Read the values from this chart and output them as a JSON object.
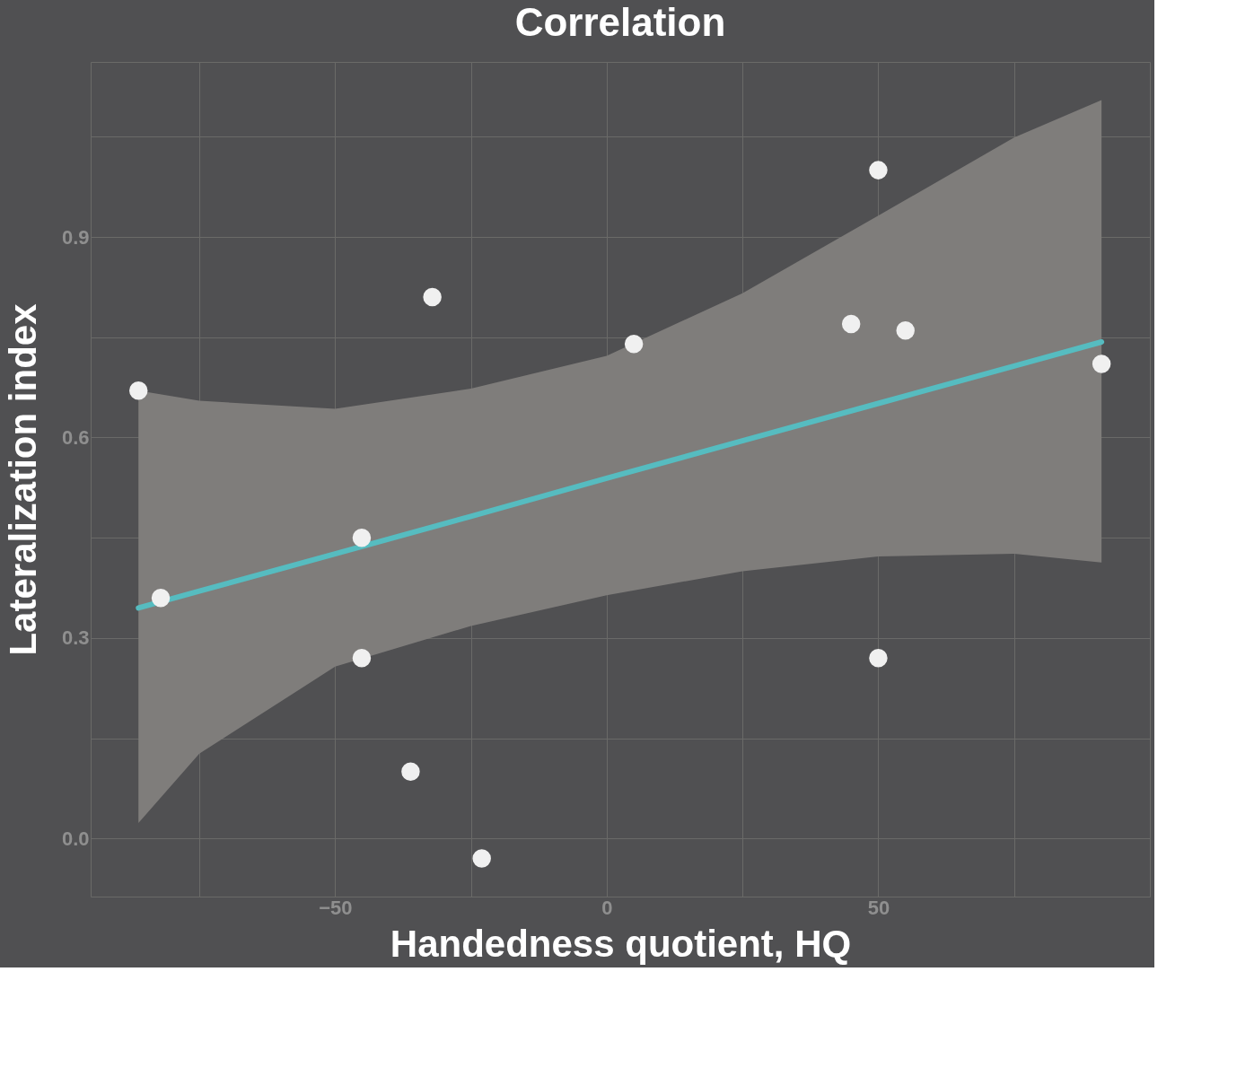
{
  "chart_data": {
    "type": "scatter",
    "title": "Correlation",
    "xlabel": "Handedness quotient, HQ",
    "ylabel": "Lateralization index",
    "xlim": [
      -95,
      100
    ],
    "ylim": [
      -0.087,
      1.162
    ],
    "xticks": [
      {
        "value": -75,
        "label": null
      },
      {
        "value": -50,
        "label": "−50"
      },
      {
        "value": -25,
        "label": null
      },
      0,
      {
        "value": 25,
        "label": null
      },
      50,
      {
        "value": 75,
        "label": null
      }
    ],
    "yticks": [
      {
        "value": 0,
        "label": "0.0"
      },
      {
        "value": 0.15,
        "label": null
      },
      0.3,
      {
        "value": 0.45,
        "label": null
      },
      0.6,
      {
        "value": 0.75,
        "label": null
      },
      0.9,
      {
        "value": 1.05,
        "label": null
      }
    ],
    "grid": true,
    "marker": "circle",
    "series": [
      {
        "type": "line",
        "marker": "none",
        "color": "#56bcc0",
        "x": [
          -86.2,
          -75,
          -50,
          -25,
          0,
          25,
          50,
          75,
          91.1
        ],
        "values": [
          0.345,
          0.37,
          0.426,
          0.482,
          0.539,
          0.595,
          0.651,
          0.707,
          0.743
        ],
        "lower": [
          0.023,
          0.127,
          0.257,
          0.318,
          0.364,
          0.4,
          0.422,
          0.426,
          0.413
        ],
        "upper": [
          0.67,
          0.655,
          0.643,
          0.673,
          0.722,
          0.816,
          0.932,
          1.049,
          1.105
        ]
      },
      {
        "color": "#f0f0f0",
        "x": [
          -86.2,
          -82.1,
          -45.1,
          -45.1,
          -36.1,
          -32.1,
          -23.0,
          5.0,
          45.0,
          50,
          55,
          50,
          91.1
        ],
        "values": [
          0.67,
          0.36,
          0.45,
          0.27,
          0.1,
          0.81,
          -0.03,
          0.74,
          0.77,
          1.0,
          0.76,
          0.27,
          0.71
        ]
      }
    ]
  }
}
